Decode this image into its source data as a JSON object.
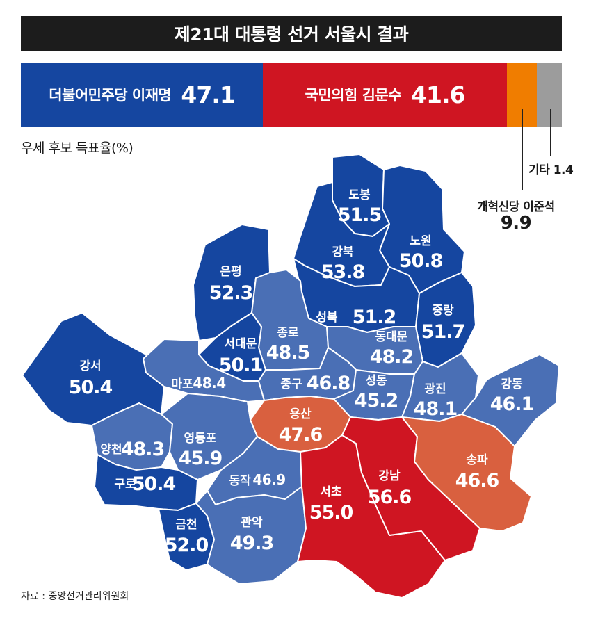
{
  "title": "제21대 대통령 선거 서울시 결과",
  "results": {
    "democratic": {
      "label": "더불어민주당 이재명",
      "value": "47.1",
      "color": "#1546a0"
    },
    "ppp": {
      "label": "국민의힘 김문수",
      "value": "41.6",
      "color": "#cf1522"
    },
    "reform": {
      "label": "개혁신당 이준석",
      "value": "9.9",
      "color": "#f07d00"
    },
    "other": {
      "label": "기타",
      "value": "1.4",
      "color": "#9c9c9c"
    }
  },
  "legend_caption": "우세 후보 득표율(%)",
  "colors": {
    "dem_strong": "#1546a0",
    "dem_light": "#4a6fb5",
    "ppp_strong": "#cf1522",
    "ppp_light": "#d9603f"
  },
  "districts": {
    "dobong": {
      "name": "도봉",
      "value": "51.5"
    },
    "nowon": {
      "name": "노원",
      "value": "50.8"
    },
    "gangbuk": {
      "name": "강북",
      "value": "53.8"
    },
    "eunpyeong": {
      "name": "은평",
      "value": "52.3"
    },
    "seongbuk": {
      "name": "성북",
      "value": "51.2"
    },
    "jungnang": {
      "name": "중랑",
      "value": "51.7"
    },
    "jongno": {
      "name": "종로",
      "value": "48.5"
    },
    "dongdaemun": {
      "name": "동대문",
      "value": "48.2"
    },
    "seodaemun": {
      "name": "서대문",
      "value": "50.1"
    },
    "gangseo": {
      "name": "강서",
      "value": "50.4"
    },
    "mapo": {
      "name": "마포",
      "value": "48.4"
    },
    "jung": {
      "name": "중구",
      "value": "46.8"
    },
    "seongdong": {
      "name": "성동",
      "value": "45.2"
    },
    "gwangjin": {
      "name": "광진",
      "value": "48.1"
    },
    "gangdong": {
      "name": "강동",
      "value": "46.1"
    },
    "yongsan": {
      "name": "용산",
      "value": "47.6"
    },
    "yangcheon": {
      "name": "양천",
      "value": "48.3"
    },
    "yeongdeungpo": {
      "name": "영등포",
      "value": "45.9"
    },
    "songpa": {
      "name": "송파",
      "value": "46.6"
    },
    "guro": {
      "name": "구로",
      "value": "50.4"
    },
    "dongjak": {
      "name": "동작",
      "value": "46.9"
    },
    "gangnam": {
      "name": "강남",
      "value": "56.6"
    },
    "seocho": {
      "name": "서초",
      "value": "55.0"
    },
    "geumcheon": {
      "name": "금천",
      "value": "52.0"
    },
    "gwanak": {
      "name": "관악",
      "value": "49.3"
    }
  },
  "source": "자료 : 중앙선거관리위원회"
}
